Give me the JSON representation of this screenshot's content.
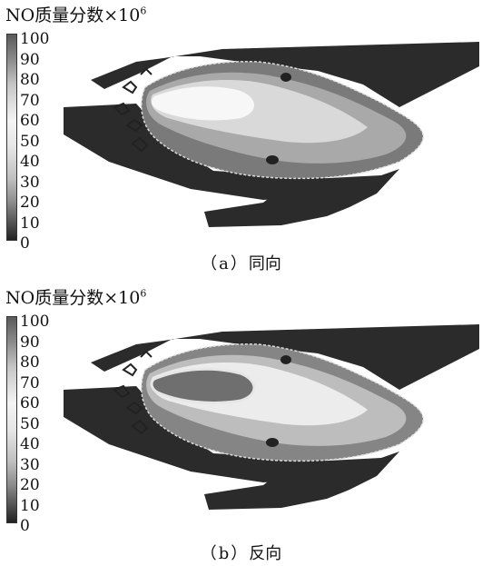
{
  "panels": [
    {
      "id": "a",
      "title_prefix": "NO质量分数",
      "title_mult": "×",
      "title_base": "10",
      "title_exp": "6",
      "caption_open": "（",
      "caption_letter": "a",
      "caption_close": "）",
      "caption_name": "同向",
      "colorbar_ticks": [
        "100",
        "90",
        "80",
        "70",
        "60",
        "50",
        "40",
        "30",
        "20",
        "10",
        "0"
      ]
    },
    {
      "id": "b",
      "title_prefix": "NO质量分数",
      "title_mult": "×",
      "title_base": "10",
      "title_exp": "6",
      "caption_open": "（",
      "caption_letter": "b",
      "caption_close": "）",
      "caption_name": "反向",
      "colorbar_ticks": [
        "100",
        "90",
        "80",
        "70",
        "60",
        "50",
        "40",
        "30",
        "20",
        "10",
        "0"
      ]
    }
  ],
  "colors": {
    "walls": "#2b2b2b",
    "colorbar_top": "#5a5a5a",
    "colorbar_mid": "#f4f4f4",
    "colorbar_bottom": "#222222",
    "field_low": "#6b6b6b",
    "field_mid": "#a8a8a8",
    "field_high": "#e8e8e8",
    "field_core": "#fafafa",
    "field_core_b": "#6f6f6f"
  }
}
